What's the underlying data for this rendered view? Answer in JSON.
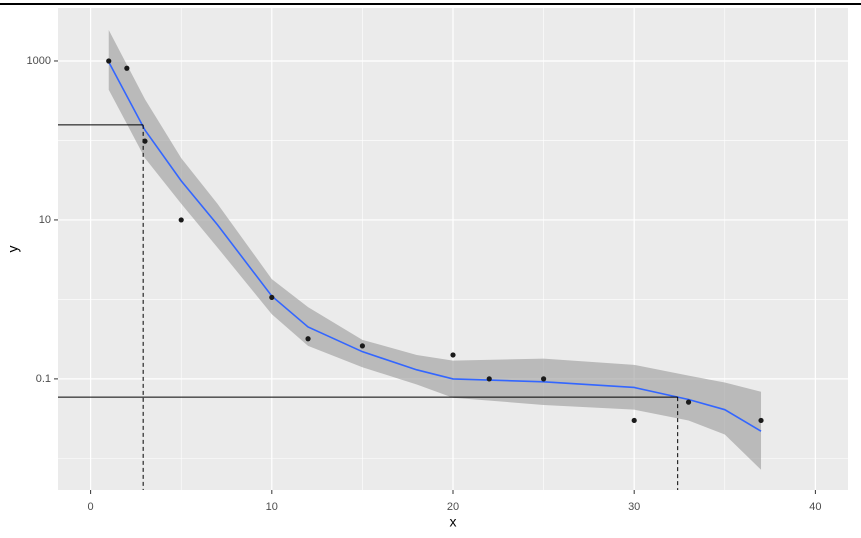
{
  "chart_data": {
    "type": "scatter_smooth",
    "x_label": "x",
    "y_label": "y",
    "xlim": [
      -1.8,
      41.8
    ],
    "xticks": [
      0,
      10,
      20,
      30,
      40
    ],
    "ylim": [
      0.004,
      4640
    ],
    "yticks": [
      1000,
      10,
      0.1
    ],
    "yminor": [
      100,
      1,
      0.01
    ],
    "ylog": true,
    "grid": true,
    "points": {
      "color": "#1a1a1a",
      "x": [
        1,
        2,
        3,
        5,
        10,
        12,
        15,
        20,
        22,
        25,
        30,
        33,
        37
      ],
      "values": [
        1000,
        810,
        98,
        10,
        1.06,
        0.32,
        0.26,
        0.2,
        0.1,
        0.1,
        0.03,
        0.051,
        0.03
      ]
    },
    "smooth": {
      "color": "#3366FF",
      "band_color": "#999999",
      "x": [
        1,
        3,
        5,
        7,
        10,
        12,
        15,
        18,
        20,
        25,
        30,
        33,
        35,
        37
      ],
      "values": [
        970,
        135,
        31,
        8.7,
        1.1,
        0.45,
        0.22,
        0.13,
        0.1,
        0.092,
        0.078,
        0.055,
        0.041,
        0.022
      ],
      "upper": [
        2450,
        330,
        60,
        16,
        1.8,
        0.8,
        0.31,
        0.2,
        0.17,
        0.18,
        0.15,
        0.11,
        0.09,
        0.069
      ],
      "lower": [
        435,
        60,
        16,
        4.5,
        0.65,
        0.26,
        0.14,
        0.085,
        0.058,
        0.047,
        0.041,
        0.03,
        0.02,
        0.0072
      ]
    },
    "reference_lines": [
      {
        "x": 2.9,
        "y": 157
      },
      {
        "x": 32.4,
        "y": 0.059
      }
    ]
  }
}
